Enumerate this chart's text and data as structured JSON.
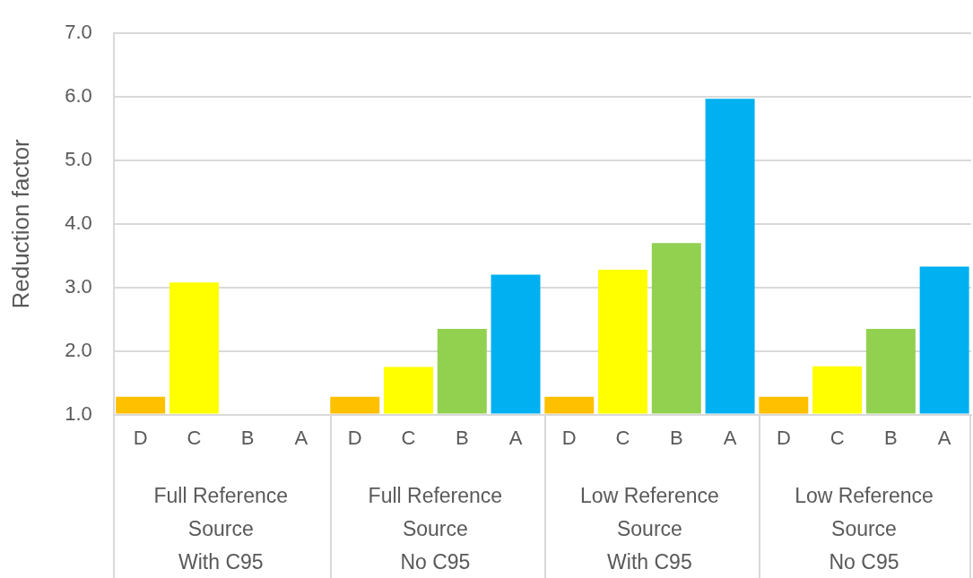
{
  "chart_data": {
    "type": "bar",
    "ylabel": "Reduction factor",
    "categories": [
      "D",
      "C",
      "B",
      "A",
      "D",
      "C",
      "B",
      "A",
      "D",
      "C",
      "B",
      "A",
      "D",
      "C",
      "B",
      "A"
    ],
    "values": [
      1.28,
      3.08,
      1.0,
      1.0,
      1.28,
      1.75,
      2.35,
      3.2,
      1.28,
      3.28,
      3.7,
      5.97,
      1.28,
      1.76,
      2.35,
      3.33
    ],
    "colors": [
      "#ffc000",
      "#ffff00",
      "#92d050",
      "#00b0f0",
      "#ffc000",
      "#ffff00",
      "#92d050",
      "#00b0f0",
      "#ffc000",
      "#ffff00",
      "#92d050",
      "#00b0f0",
      "#ffc000",
      "#ffff00",
      "#92d050",
      "#00b0f0"
    ],
    "ylim": [
      1,
      7
    ],
    "yticks": [
      {
        "value": 1,
        "label": "1.0"
      },
      {
        "value": 2,
        "label": "2.0"
      },
      {
        "value": 3,
        "label": "3.0"
      },
      {
        "value": 4,
        "label": "4.0"
      },
      {
        "value": 5,
        "label": "5.0"
      },
      {
        "value": 6,
        "label": "6.0"
      },
      {
        "value": 7,
        "label": "7.0"
      }
    ],
    "annotations": [
      "Full Reference\nSource\nWith C95",
      "Full Reference\nSource\nNo C95",
      "Low Reference\nSource\nWith C95",
      "Low Reference\nSource\nNo C95"
    ],
    "grid": "y",
    "legend": false
  }
}
